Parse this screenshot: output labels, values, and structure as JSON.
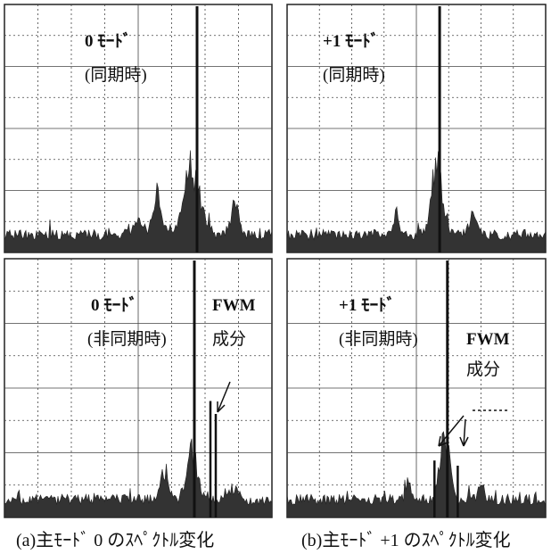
{
  "panels": [
    {
      "mode": "0 ﾓｰﾄﾞ",
      "state": "(同期時)"
    },
    {
      "mode": "+1 ﾓｰﾄﾞ",
      "state": "(同期時)"
    },
    {
      "mode": "0 ﾓｰﾄﾞ",
      "state": "(非同期時)",
      "note1": "FWM",
      "note2": "成分"
    },
    {
      "mode": "+1 ﾓｰﾄﾞ",
      "state": "(非同期時)",
      "note1": "FWM",
      "note2": "成分"
    }
  ],
  "captions": [
    "(a)主ﾓｰﾄﾞ 0 のｽﾍﾟｸﾄﾙ変化",
    "(b)主ﾓｰﾄﾞ +1 のｽﾍﾟｸﾄﾙ変化"
  ]
}
